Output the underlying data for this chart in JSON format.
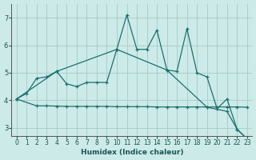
{
  "xlabel": "Humidex (Indice chaleur)",
  "background_color": "#cceae7",
  "grid_color": "#aacfcc",
  "line_color": "#1a7070",
  "xlim": [
    -0.5,
    23.5
  ],
  "ylim": [
    2.7,
    7.5
  ],
  "yticks": [
    3,
    4,
    5,
    6,
    7
  ],
  "xticks": [
    0,
    1,
    2,
    3,
    4,
    5,
    6,
    7,
    8,
    9,
    10,
    11,
    12,
    13,
    14,
    15,
    16,
    17,
    18,
    19,
    20,
    21,
    22,
    23
  ],
  "series1_x": [
    0,
    1,
    2,
    3,
    4,
    5,
    6,
    7,
    8,
    9,
    10,
    11,
    12,
    13,
    14,
    15,
    16,
    17,
    18,
    19,
    20,
    21,
    22,
    23
  ],
  "series1_y": [
    4.05,
    4.25,
    4.8,
    4.85,
    5.05,
    4.6,
    4.5,
    4.65,
    4.65,
    4.65,
    5.85,
    7.1,
    5.85,
    5.85,
    6.55,
    5.1,
    5.05,
    6.6,
    5.0,
    4.85,
    3.7,
    4.05,
    2.95,
    2.6
  ],
  "series2_x": [
    0,
    2,
    3,
    4,
    5,
    6,
    7,
    8,
    9,
    10,
    11,
    12,
    13,
    14,
    15,
    16,
    17,
    18,
    19,
    20,
    21,
    22,
    23
  ],
  "series2_y": [
    4.05,
    3.8,
    3.8,
    3.79,
    3.78,
    3.78,
    3.78,
    3.78,
    3.78,
    3.77,
    3.77,
    3.77,
    3.77,
    3.76,
    3.76,
    3.76,
    3.76,
    3.76,
    3.76,
    3.76,
    3.76,
    3.76,
    3.75
  ],
  "series3_x": [
    0,
    4,
    10,
    15,
    19,
    21,
    22,
    23
  ],
  "series3_y": [
    4.05,
    5.05,
    5.85,
    5.1,
    3.75,
    3.6,
    2.95,
    2.6
  ]
}
